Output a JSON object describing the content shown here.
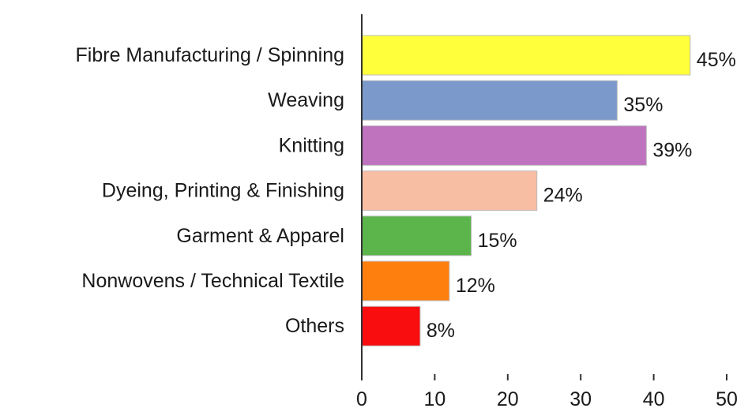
{
  "chart_data": {
    "type": "bar",
    "orientation": "horizontal",
    "title": "",
    "xlabel": "",
    "ylabel": "",
    "xlim": [
      0,
      50
    ],
    "x_ticks": [
      0,
      10,
      20,
      30,
      40,
      50
    ],
    "grid": false,
    "categories": [
      "Fibre Manufacturing / Spinning",
      "Weaving",
      "Knitting",
      "Dyeing, Printing & Finishing",
      "Garment & Apparel",
      "Nonwovens / Technical Textile",
      "Others"
    ],
    "values": [
      45,
      35,
      39,
      24,
      15,
      12,
      8
    ],
    "value_labels": [
      "45%",
      "35%",
      "39%",
      "24%",
      "15%",
      "12%",
      "8%"
    ],
    "colors": [
      "#ffff3b",
      "#7b9acb",
      "#bf73bf",
      "#f7bea4",
      "#5cb54b",
      "#ff7f0e",
      "#f90d0f"
    ]
  }
}
